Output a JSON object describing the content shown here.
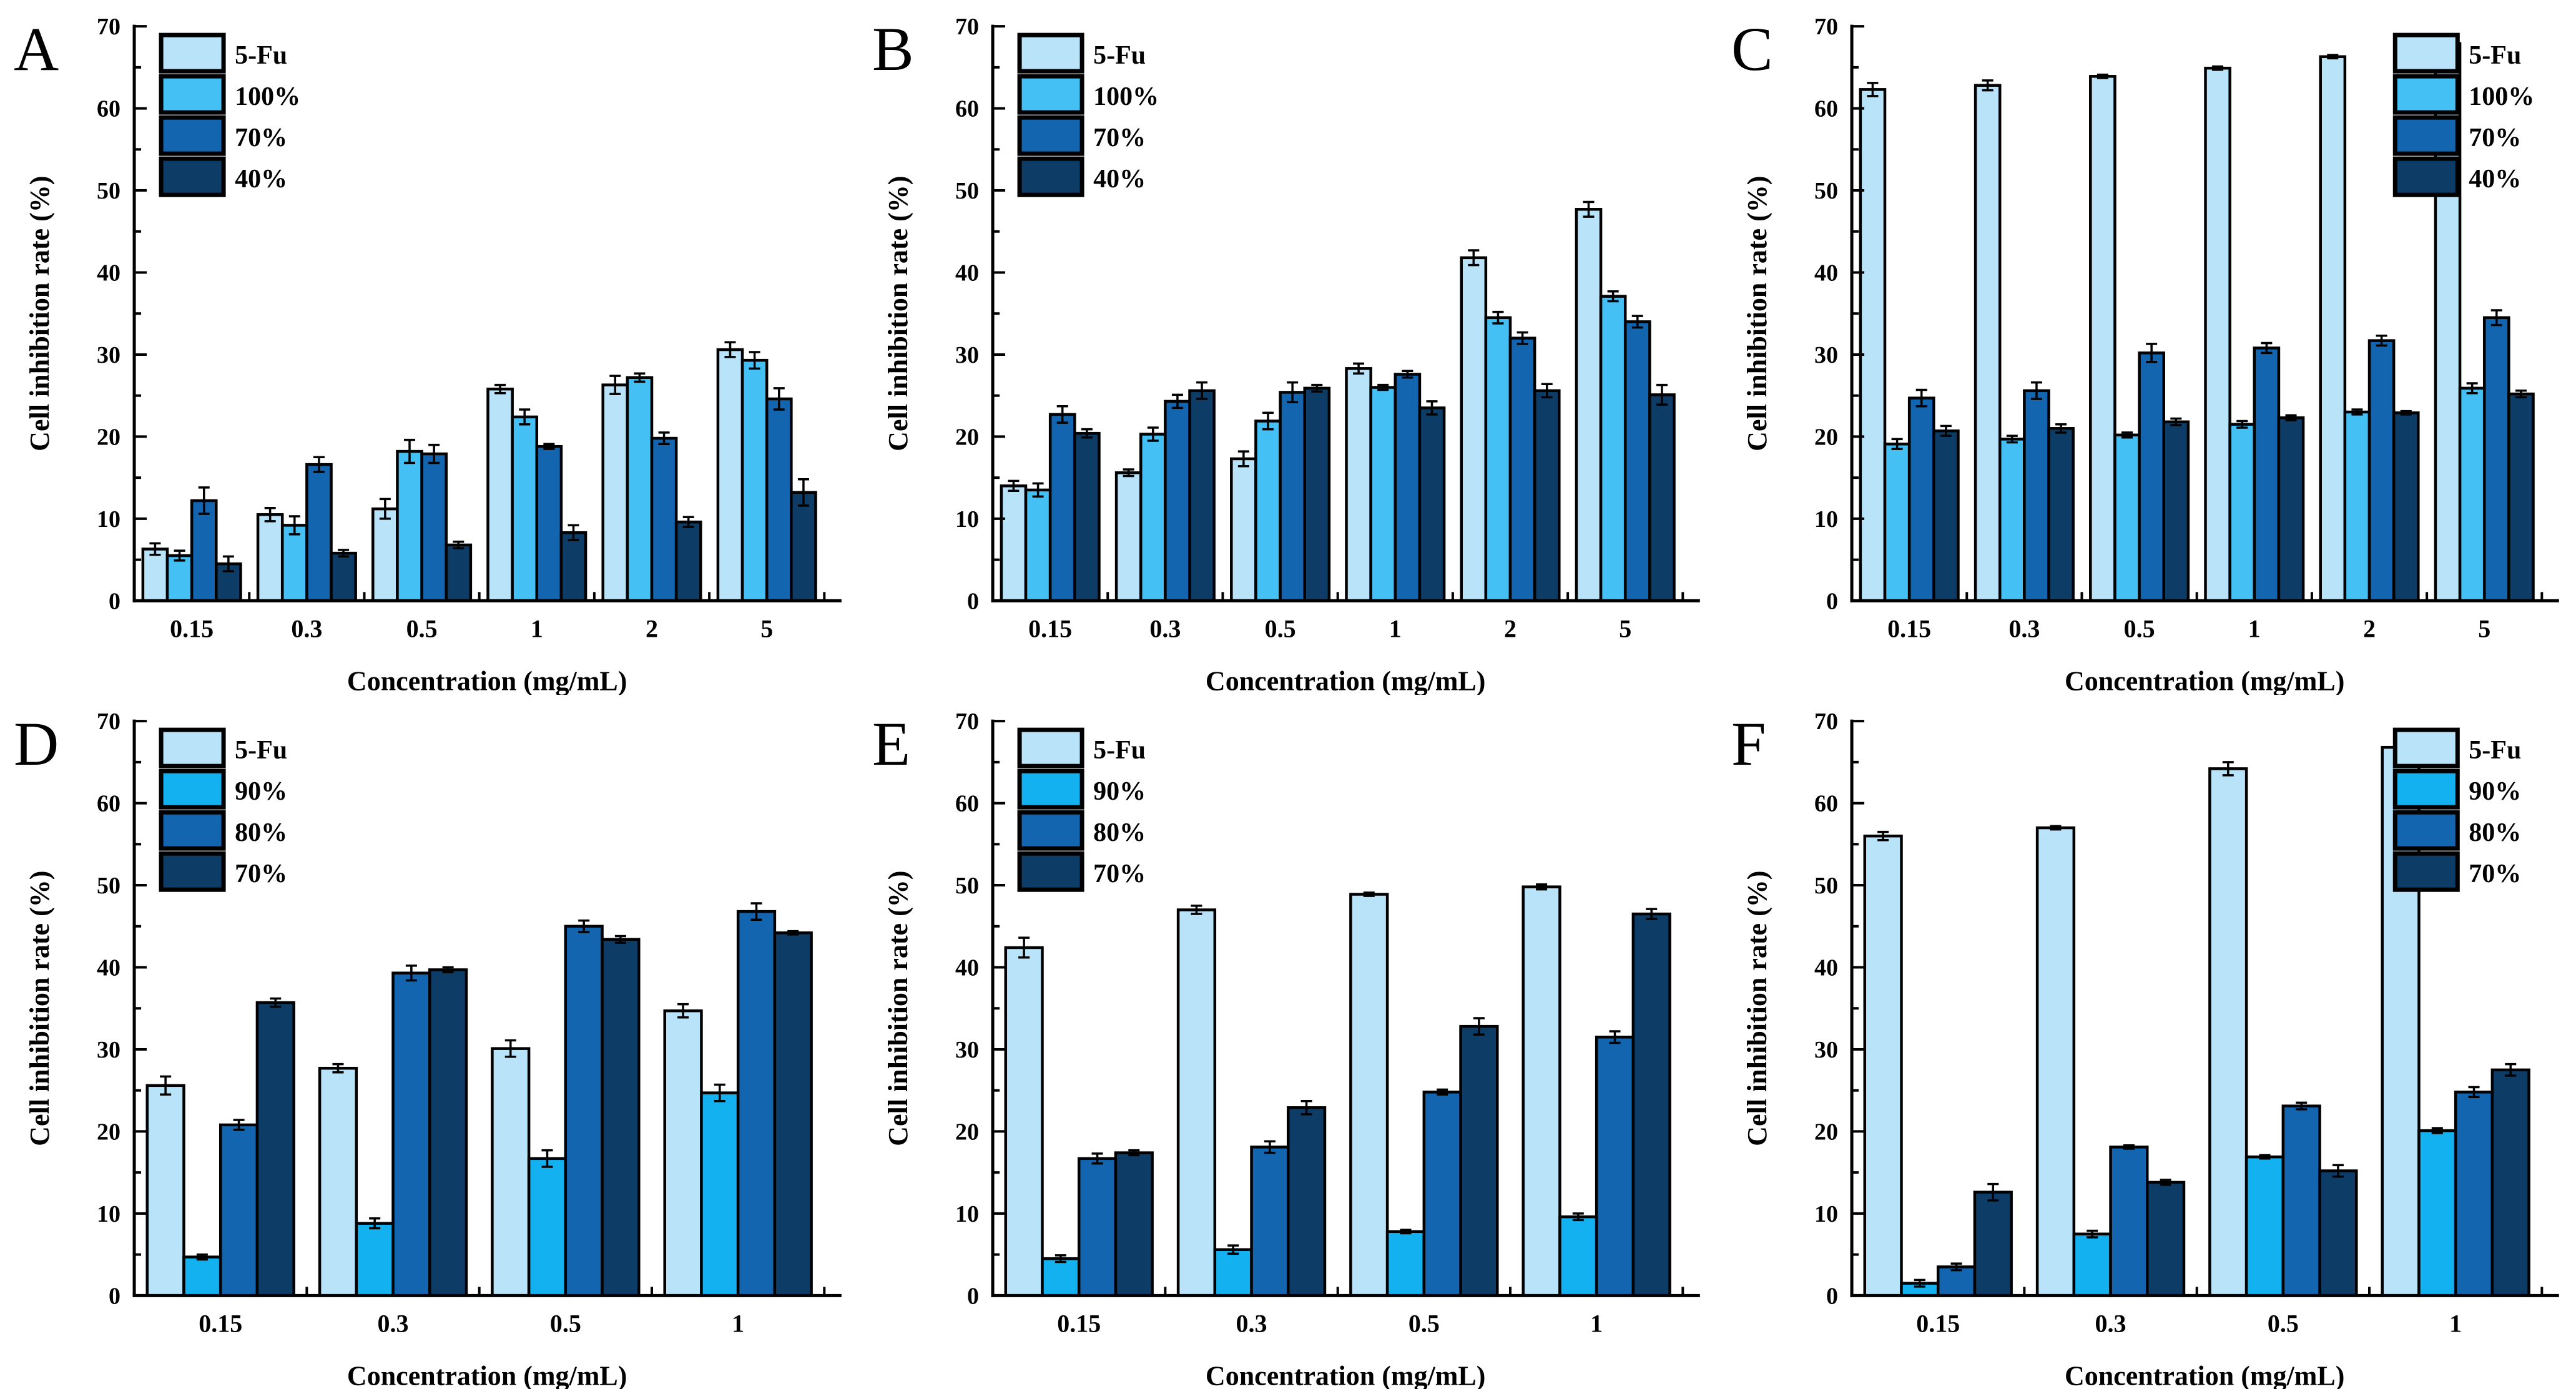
{
  "figure": {
    "background": "#ffffff",
    "xlabel": "Concentration (mg/mL)",
    "ylabel": "Cell inhibition rate (%)",
    "axis_color": "#000000",
    "ylim": [
      0,
      70
    ],
    "ytick_step": 10,
    "yminor_step": 5,
    "grid": "off"
  },
  "chart_data": [
    {
      "id": "A",
      "type": "bar",
      "title": "A",
      "categories": [
        "0.15",
        "0.3",
        "0.5",
        "1",
        "2",
        "5"
      ],
      "xlabel": "Concentration (mg/mL)",
      "ylabel": "Cell inhibition rate (%)",
      "ylim": [
        0,
        70
      ],
      "legend_position": "top-left",
      "series": [
        {
          "name": "5-Fu",
          "color": "#B9E3F9",
          "values": [
            6.3,
            10.5,
            11.2,
            25.8,
            26.3,
            30.6
          ],
          "errors": [
            0.7,
            0.8,
            1.2,
            0.5,
            1.1,
            0.9
          ]
        },
        {
          "name": "100%",
          "color": "#45C0F5",
          "values": [
            5.5,
            9.2,
            18.2,
            22.4,
            27.2,
            29.3
          ],
          "errors": [
            0.6,
            1.1,
            1.4,
            0.9,
            0.5,
            1.0
          ]
        },
        {
          "name": "70%",
          "color": "#1265AE",
          "values": [
            12.2,
            16.6,
            17.9,
            18.8,
            19.8,
            24.6
          ],
          "errors": [
            1.6,
            0.9,
            1.1,
            0.3,
            0.7,
            1.3
          ]
        },
        {
          "name": "40%",
          "color": "#0D3D66",
          "values": [
            4.5,
            5.8,
            6.8,
            8.3,
            9.6,
            13.2
          ],
          "errors": [
            0.9,
            0.4,
            0.4,
            0.9,
            0.6,
            1.6
          ]
        }
      ]
    },
    {
      "id": "B",
      "type": "bar",
      "title": "B",
      "categories": [
        "0.15",
        "0.3",
        "0.5",
        "1",
        "2",
        "5"
      ],
      "xlabel": "Concentration (mg/mL)",
      "ylabel": "Cell inhibition rate (%)",
      "ylim": [
        0,
        70
      ],
      "legend_position": "top-left",
      "series": [
        {
          "name": "5-Fu",
          "color": "#B9E3F9",
          "values": [
            14.0,
            15.6,
            17.3,
            28.3,
            41.8,
            47.7
          ],
          "errors": [
            0.6,
            0.4,
            0.9,
            0.6,
            0.9,
            0.9
          ]
        },
        {
          "name": "100%",
          "color": "#45C0F5",
          "values": [
            13.5,
            20.3,
            21.9,
            26.0,
            34.5,
            37.1
          ],
          "errors": [
            0.8,
            0.8,
            1.0,
            0.3,
            0.7,
            0.6
          ]
        },
        {
          "name": "70%",
          "color": "#1265AE",
          "values": [
            22.7,
            24.3,
            25.4,
            27.6,
            32.0,
            34.0
          ],
          "errors": [
            1.0,
            0.8,
            1.2,
            0.4,
            0.7,
            0.7
          ]
        },
        {
          "name": "40%",
          "color": "#0D3D66",
          "values": [
            20.4,
            25.6,
            25.9,
            23.5,
            25.6,
            25.1
          ],
          "errors": [
            0.5,
            1.0,
            0.4,
            0.8,
            0.8,
            1.2
          ]
        }
      ]
    },
    {
      "id": "C",
      "type": "bar",
      "title": "C",
      "categories": [
        "0.15",
        "0.3",
        "0.5",
        "1",
        "2",
        "5"
      ],
      "xlabel": "Concentration (mg/mL)",
      "ylabel": "Cell inhibition rate (%)",
      "ylim": [
        0,
        70
      ],
      "legend_position": "top-right",
      "series": [
        {
          "name": "5-Fu",
          "color": "#B9E3F9",
          "values": [
            62.3,
            62.8,
            63.9,
            64.9,
            66.3,
            67.9
          ],
          "errors": [
            0.8,
            0.6,
            0.2,
            0.2,
            0.2,
            0.7
          ]
        },
        {
          "name": "100%",
          "color": "#45C0F5",
          "values": [
            19.1,
            19.7,
            20.2,
            21.5,
            23.0,
            25.9
          ],
          "errors": [
            0.6,
            0.4,
            0.3,
            0.4,
            0.3,
            0.6
          ]
        },
        {
          "name": "70%",
          "color": "#1265AE",
          "values": [
            24.7,
            25.6,
            30.2,
            30.8,
            31.7,
            34.5
          ],
          "errors": [
            1.0,
            1.0,
            1.1,
            0.6,
            0.6,
            0.9
          ]
        },
        {
          "name": "40%",
          "color": "#0D3D66",
          "values": [
            20.7,
            21.0,
            21.8,
            22.3,
            22.9,
            25.2
          ],
          "errors": [
            0.6,
            0.5,
            0.4,
            0.3,
            0.2,
            0.4
          ]
        }
      ]
    },
    {
      "id": "D",
      "type": "bar",
      "title": "D",
      "categories": [
        "0.15",
        "0.3",
        "0.5",
        "1"
      ],
      "xlabel": "Concentration (mg/mL)",
      "ylabel": "Cell inhibition rate (%)",
      "ylim": [
        0,
        70
      ],
      "legend_position": "top-left",
      "series": [
        {
          "name": "5-Fu",
          "color": "#B9E3F9",
          "values": [
            25.6,
            27.7,
            30.1,
            34.7
          ],
          "errors": [
            1.1,
            0.5,
            1.0,
            0.8
          ]
        },
        {
          "name": "90%",
          "color": "#14B1F1",
          "values": [
            4.7,
            8.8,
            16.7,
            24.7
          ],
          "errors": [
            0.3,
            0.6,
            1.0,
            1.0
          ]
        },
        {
          "name": "80%",
          "color": "#1265AE",
          "values": [
            20.8,
            39.3,
            45.0,
            46.8
          ],
          "errors": [
            0.6,
            0.9,
            0.7,
            1.0
          ]
        },
        {
          "name": "70%",
          "color": "#0D3D66",
          "values": [
            35.7,
            39.7,
            43.4,
            44.2
          ],
          "errors": [
            0.5,
            0.3,
            0.4,
            0.2
          ]
        }
      ]
    },
    {
      "id": "E",
      "type": "bar",
      "title": "E",
      "categories": [
        "0.15",
        "0.3",
        "0.5",
        "1"
      ],
      "xlabel": "Concentration (mg/mL)",
      "ylabel": "Cell inhibition rate (%)",
      "ylim": [
        0,
        70
      ],
      "legend_position": "top-left",
      "series": [
        {
          "name": "5-Fu",
          "color": "#B9E3F9",
          "values": [
            42.4,
            47.0,
            48.9,
            49.8
          ],
          "errors": [
            1.2,
            0.5,
            0.2,
            0.3
          ]
        },
        {
          "name": "90%",
          "color": "#14B1F1",
          "values": [
            4.5,
            5.6,
            7.8,
            9.6
          ],
          "errors": [
            0.4,
            0.5,
            0.2,
            0.4
          ]
        },
        {
          "name": "80%",
          "color": "#1265AE",
          "values": [
            16.7,
            18.1,
            24.8,
            31.5
          ],
          "errors": [
            0.6,
            0.7,
            0.3,
            0.7
          ]
        },
        {
          "name": "70%",
          "color": "#0D3D66",
          "values": [
            17.4,
            22.9,
            32.8,
            46.5
          ],
          "errors": [
            0.3,
            0.8,
            1.0,
            0.6
          ]
        }
      ]
    },
    {
      "id": "F",
      "type": "bar",
      "title": "F",
      "categories": [
        "0.15",
        "0.3",
        "0.5",
        "1"
      ],
      "xlabel": "Concentration (mg/mL)",
      "ylabel": "Cell inhibition rate (%)",
      "ylim": [
        0,
        70
      ],
      "legend_position": "top-right",
      "series": [
        {
          "name": "5-Fu",
          "color": "#B9E3F9",
          "values": [
            56.0,
            57.0,
            64.2,
            66.8
          ],
          "errors": [
            0.5,
            0.2,
            0.8,
            0.6
          ]
        },
        {
          "name": "90%",
          "color": "#14B1F1",
          "values": [
            1.5,
            7.5,
            16.9,
            20.1
          ],
          "errors": [
            0.4,
            0.4,
            0.2,
            0.3
          ]
        },
        {
          "name": "80%",
          "color": "#1265AE",
          "values": [
            3.5,
            18.1,
            23.1,
            24.8
          ],
          "errors": [
            0.4,
            0.2,
            0.4,
            0.6
          ]
        },
        {
          "name": "70%",
          "color": "#0D3D66",
          "values": [
            12.6,
            13.8,
            15.2,
            27.5
          ],
          "errors": [
            1.0,
            0.3,
            0.7,
            0.7
          ]
        }
      ]
    }
  ]
}
